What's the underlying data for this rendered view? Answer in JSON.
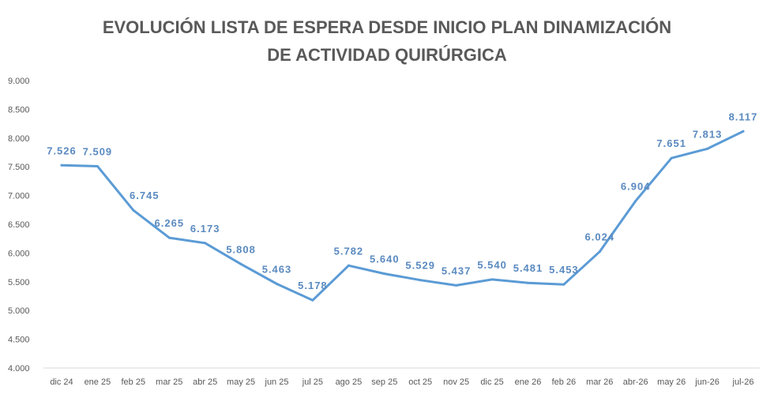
{
  "chart_data": {
    "type": "line",
    "title_lines": [
      "EVOLUCIÓN LISTA DE ESPERA DESDE INICIO PLAN DINAMIZACIÓN",
      "DE ACTIVIDAD QUIRÚRGICA"
    ],
    "categories": [
      "dic 24",
      "ene 25",
      "feb 25",
      "mar 25",
      "abr 25",
      "may 25",
      "jun 25",
      "jul 25",
      "ago 25",
      "sep 25",
      "oct 25",
      "nov 25",
      "dic 25",
      "ene 26",
      "feb 26",
      "mar 26",
      "abr-26",
      "may 26",
      "jun-26",
      "jul-26"
    ],
    "values": [
      7526,
      7509,
      6745,
      6265,
      6173,
      5808,
      5463,
      5178,
      5782,
      5640,
      5529,
      5437,
      5540,
      5481,
      5453,
      6024,
      6904,
      7651,
      7813,
      8117
    ],
    "data_labels": [
      "7.526",
      "7.509",
      "6.745",
      "6.265",
      "6.173",
      "5.808",
      "5.463",
      "5.178",
      "5.782",
      "5.640",
      "5.529",
      "5.437",
      "5.540",
      "5.481",
      "5.453",
      "6.024",
      "6.904",
      "7.651",
      "7.813",
      "8.117"
    ],
    "ylim": [
      4000,
      9000
    ],
    "yticks": [
      4000,
      4500,
      5000,
      5500,
      6000,
      6500,
      7000,
      7500,
      8000,
      8500,
      9000
    ],
    "ytick_labels": [
      "4.000",
      "4.500",
      "5.000",
      "5.500",
      "6.000",
      "6.500",
      "7.000",
      "7.500",
      "8.000",
      "8.500",
      "9.000"
    ],
    "grid": false,
    "legend": false,
    "markers": false,
    "colors": {
      "line": "#5b9bd5",
      "data_labels": "#5a8ac0",
      "title": "#595959",
      "axis_text": "#595959",
      "axis_line": "#d9d9d9"
    }
  }
}
